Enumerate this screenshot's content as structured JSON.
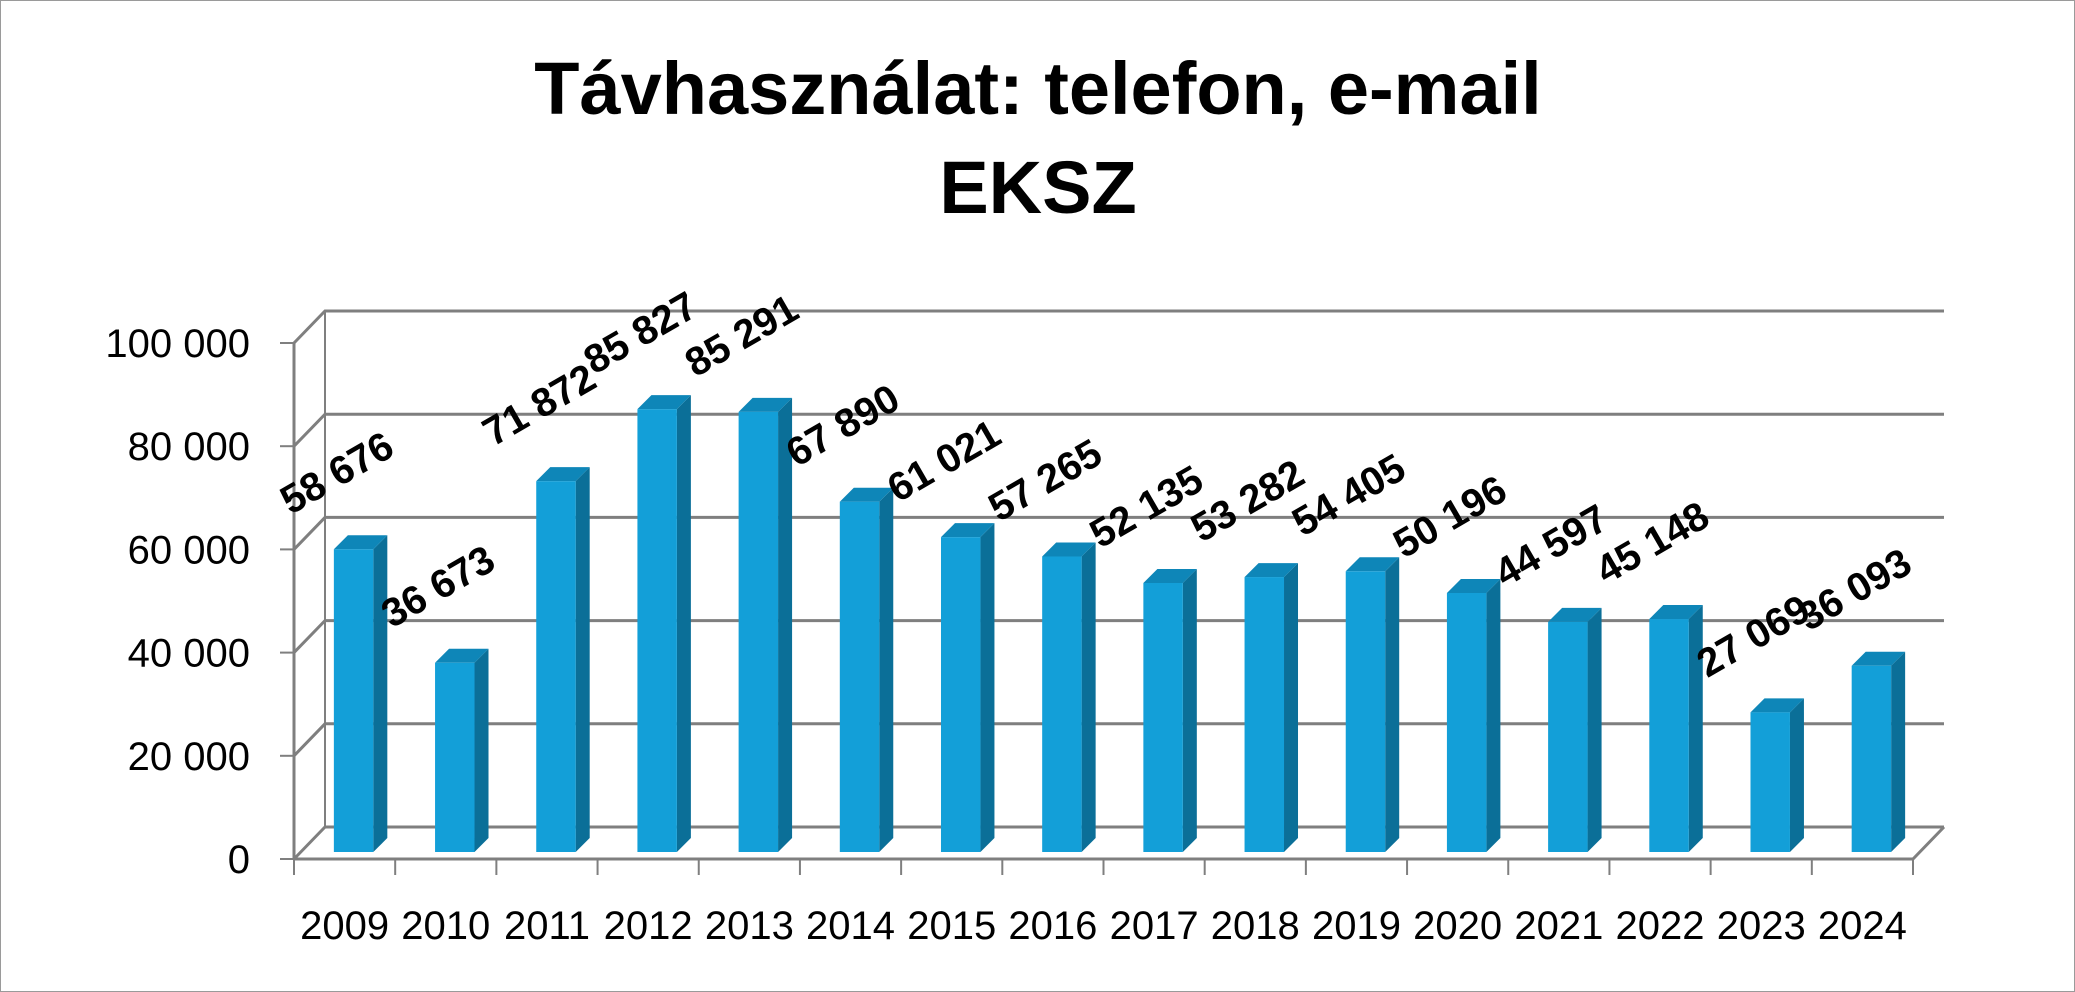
{
  "chart_data": {
    "type": "bar",
    "title": "Távhasználat: telefon, e-mail",
    "subtitle": "EKSZ",
    "xlabel": "",
    "ylabel": "",
    "categories": [
      "2009",
      "2010",
      "2011",
      "2012",
      "2013",
      "2014",
      "2015",
      "2016",
      "2017",
      "2018",
      "2019",
      "2020",
      "2021",
      "2022",
      "2023",
      "2024"
    ],
    "values": [
      58676,
      36673,
      71872,
      85827,
      85291,
      67890,
      61021,
      57265,
      52135,
      53282,
      54405,
      50196,
      44597,
      45148,
      27069,
      36093
    ],
    "data_labels": [
      "58 676",
      "36 673",
      "71 872",
      "85 827",
      "85 291",
      "67 890",
      "61 021",
      "57 265",
      "52 135",
      "53 282",
      "54 405",
      "50 196",
      "44 597",
      "45 148",
      "27 069",
      "36 093"
    ],
    "y_ticks": [
      0,
      20000,
      40000,
      60000,
      80000,
      100000
    ],
    "y_tick_labels": [
      "0",
      "20 000",
      "40 000",
      "60 000",
      "80 000",
      "100 000"
    ],
    "ylim": [
      0,
      100000
    ],
    "grid": true,
    "legend": "none",
    "style": "3d-column",
    "colors": {
      "bar_front": "#139fd8",
      "bar_side": "#0b6f98",
      "bar_top": "#0e86b8",
      "grid": "#7f7f7f"
    }
  }
}
